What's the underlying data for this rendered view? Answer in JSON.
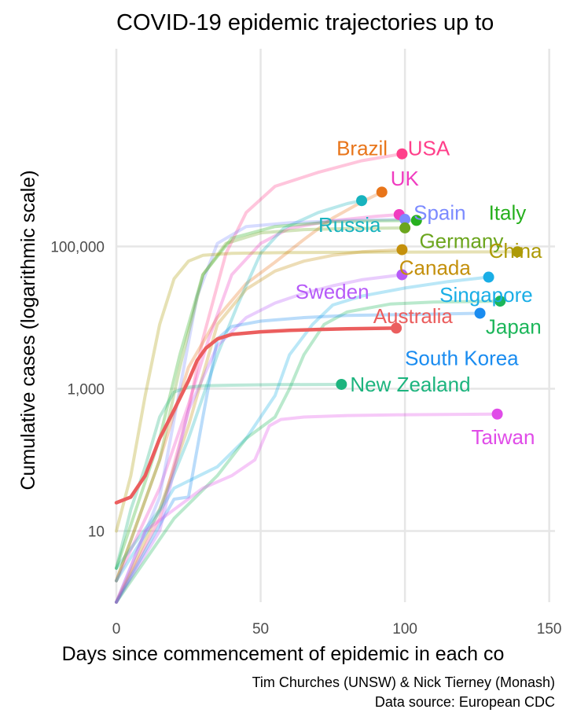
{
  "chart_data": {
    "type": "line",
    "title": "COVID-19 epidemic trajectories up to",
    "xlabel": "Days since commencement of epidemic in each co",
    "ylabel": "Cumulative cases (logarithmic scale)",
    "caption": [
      "Tim Churches (UNSW) & Nick Tierney (Monash)",
      "Data source: European CDC"
    ],
    "x_scale": "linear",
    "y_scale": "log10",
    "xlim": [
      0,
      152
    ],
    "ylim": [
      1,
      60000000
    ],
    "x_ticks": [
      0,
      50,
      100,
      150
    ],
    "x_tick_labels": [
      "0",
      "50",
      "100",
      "150"
    ],
    "y_ticks": [
      10,
      1000,
      100000
    ],
    "y_tick_labels": [
      "10",
      "1,000",
      "100,000"
    ],
    "grid": true,
    "legend": "none",
    "highlighted_series": "Australia",
    "series": [
      {
        "name": "USA",
        "color": "#FF3F8A",
        "end": [
          99,
          2000000
        ],
        "points": [
          [
            0,
            1
          ],
          [
            15,
            15
          ],
          [
            25,
            500
          ],
          [
            30,
            5000
          ],
          [
            38,
            80000
          ],
          [
            45,
            300000
          ],
          [
            55,
            700000
          ],
          [
            70,
            1100000
          ],
          [
            85,
            1600000
          ],
          [
            99,
            2000000
          ]
        ]
      },
      {
        "name": "Brazil",
        "color": "#E8751A",
        "end": [
          92,
          580000
        ],
        "points": [
          [
            0,
            2
          ],
          [
            15,
            100
          ],
          [
            25,
            2000
          ],
          [
            35,
            10000
          ],
          [
            45,
            30000
          ],
          [
            55,
            60000
          ],
          [
            65,
            125000
          ],
          [
            75,
            250000
          ],
          [
            85,
            420000
          ],
          [
            92,
            580000
          ]
        ]
      },
      {
        "name": "UK",
        "color": "#F03CC0",
        "end": [
          98,
          280000
        ],
        "points": [
          [
            0,
            2
          ],
          [
            15,
            40
          ],
          [
            25,
            600
          ],
          [
            32,
            5000
          ],
          [
            40,
            40000
          ],
          [
            50,
            110000
          ],
          [
            60,
            180000
          ],
          [
            75,
            230000
          ],
          [
            90,
            265000
          ],
          [
            98,
            280000
          ]
        ]
      },
      {
        "name": "Russia",
        "color": "#18B3BE",
        "end": [
          85,
          440000
        ],
        "points": [
          [
            0,
            3
          ],
          [
            15,
            20
          ],
          [
            25,
            200
          ],
          [
            35,
            3000
          ],
          [
            42,
            15000
          ],
          [
            50,
            80000
          ],
          [
            58,
            180000
          ],
          [
            70,
            300000
          ],
          [
            80,
            400000
          ],
          [
            85,
            440000
          ]
        ]
      },
      {
        "name": "Spain",
        "color": "#7C8BFF",
        "end": [
          100,
          240000
        ],
        "points": [
          [
            0,
            1
          ],
          [
            15,
            30
          ],
          [
            22,
            1000
          ],
          [
            28,
            20000
          ],
          [
            35,
            110000
          ],
          [
            45,
            190000
          ],
          [
            60,
            215000
          ],
          [
            80,
            232000
          ],
          [
            100,
            240000
          ]
        ]
      },
      {
        "name": "Italy",
        "color": "#27B01E",
        "end": [
          104,
          232000
        ],
        "points": [
          [
            0,
            3
          ],
          [
            15,
            200
          ],
          [
            22,
            3000
          ],
          [
            30,
            40000
          ],
          [
            40,
            130000
          ],
          [
            55,
            190000
          ],
          [
            75,
            222000
          ],
          [
            90,
            229000
          ],
          [
            104,
            232000
          ]
        ]
      },
      {
        "name": "Germany",
        "color": "#6BA51D",
        "end": [
          100,
          182000
        ],
        "points": [
          [
            0,
            2
          ],
          [
            15,
            100
          ],
          [
            22,
            2000
          ],
          [
            30,
            40000
          ],
          [
            38,
            110000
          ],
          [
            50,
            155000
          ],
          [
            65,
            172000
          ],
          [
            80,
            178000
          ],
          [
            100,
            182000
          ]
        ]
      },
      {
        "name": "China",
        "color": "#AD9A06",
        "end": [
          139,
          84000
        ],
        "points": [
          [
            0,
            10
          ],
          [
            5,
            60
          ],
          [
            10,
            800
          ],
          [
            15,
            8000
          ],
          [
            20,
            35000
          ],
          [
            25,
            62000
          ],
          [
            30,
            75000
          ],
          [
            40,
            80000
          ],
          [
            60,
            82000
          ],
          [
            90,
            83000
          ],
          [
            139,
            84000
          ]
        ]
      },
      {
        "name": "Canada",
        "color": "#C4900C",
        "end": [
          99,
          90000
        ],
        "points": [
          [
            0,
            1
          ],
          [
            15,
            20
          ],
          [
            25,
            300
          ],
          [
            35,
            8000
          ],
          [
            45,
            25000
          ],
          [
            55,
            45000
          ],
          [
            65,
            62000
          ],
          [
            75,
            75000
          ],
          [
            85,
            84000
          ],
          [
            99,
            90000
          ]
        ]
      },
      {
        "name": "Sweden",
        "color": "#B65AF8",
        "end": [
          99,
          40000
        ],
        "points": [
          [
            0,
            1
          ],
          [
            15,
            10
          ],
          [
            25,
            500
          ],
          [
            35,
            4000
          ],
          [
            45,
            10000
          ],
          [
            55,
            16000
          ],
          [
            65,
            22000
          ],
          [
            75,
            28000
          ],
          [
            85,
            34000
          ],
          [
            99,
            40000
          ]
        ]
      },
      {
        "name": "Singapore",
        "color": "#1AAEE6",
        "end": [
          129,
          37000
        ],
        "points": [
          [
            0,
            2
          ],
          [
            20,
            40
          ],
          [
            35,
            80
          ],
          [
            45,
            200
          ],
          [
            55,
            800
          ],
          [
            60,
            3000
          ],
          [
            68,
            8000
          ],
          [
            75,
            15000
          ],
          [
            85,
            20000
          ],
          [
            100,
            26000
          ],
          [
            115,
            32000
          ],
          [
            129,
            37000
          ]
        ]
      },
      {
        "name": "Japan",
        "color": "#1CB65A",
        "end": [
          133,
          17000
        ],
        "points": [
          [
            0,
            1
          ],
          [
            20,
            15
          ],
          [
            35,
            60
          ],
          [
            45,
            200
          ],
          [
            55,
            400
          ],
          [
            60,
            1000
          ],
          [
            65,
            3000
          ],
          [
            72,
            8000
          ],
          [
            80,
            12000
          ],
          [
            95,
            15500
          ],
          [
            110,
            16500
          ],
          [
            133,
            17000
          ]
        ]
      },
      {
        "name": "South Korea",
        "color": "#1A8CF0",
        "end": [
          126,
          11500
        ],
        "points": [
          [
            0,
            1
          ],
          [
            20,
            28
          ],
          [
            25,
            30
          ],
          [
            30,
            400
          ],
          [
            35,
            5000
          ],
          [
            40,
            7500
          ],
          [
            50,
            8900
          ],
          [
            65,
            10000
          ],
          [
            80,
            10700
          ],
          [
            100,
            11000
          ],
          [
            126,
            11500
          ]
        ]
      },
      {
        "name": "Australia",
        "color": "#EB5E5E",
        "end": [
          97,
          7100
        ],
        "points": [
          [
            0,
            25
          ],
          [
            5,
            30
          ],
          [
            10,
            60
          ],
          [
            15,
            200
          ],
          [
            20,
            500
          ],
          [
            25,
            1300
          ],
          [
            28,
            2500
          ],
          [
            31,
            3700
          ],
          [
            35,
            5000
          ],
          [
            40,
            5800
          ],
          [
            50,
            6300
          ],
          [
            60,
            6600
          ],
          [
            70,
            6800
          ],
          [
            80,
            6950
          ],
          [
            97,
            7100
          ]
        ]
      },
      {
        "name": "New Zealand",
        "color": "#1DB47E",
        "end": [
          78,
          1150
        ],
        "points": [
          [
            0,
            3
          ],
          [
            5,
            20
          ],
          [
            10,
            80
          ],
          [
            15,
            400
          ],
          [
            20,
            900
          ],
          [
            25,
            1050
          ],
          [
            30,
            1100
          ],
          [
            40,
            1120
          ],
          [
            55,
            1140
          ],
          [
            78,
            1150
          ]
        ]
      },
      {
        "name": "Taiwan",
        "color": "#E04CE8",
        "end": [
          132,
          440
        ],
        "points": [
          [
            0,
            1
          ],
          [
            10,
            10
          ],
          [
            20,
            20
          ],
          [
            30,
            40
          ],
          [
            40,
            60
          ],
          [
            48,
            100
          ],
          [
            53,
            300
          ],
          [
            57,
            370
          ],
          [
            65,
            400
          ],
          [
            80,
            420
          ],
          [
            100,
            430
          ],
          [
            132,
            440
          ]
        ]
      }
    ],
    "labels": [
      {
        "name": "USA",
        "x": 101,
        "y": 2400000,
        "anchor": "start"
      },
      {
        "name": "Brazil",
        "x": 94,
        "y": 2400000,
        "anchor": "end"
      },
      {
        "name": "UK",
        "x": 95,
        "y": 900000,
        "anchor": "start"
      },
      {
        "name": "Russia",
        "x": 70,
        "y": 200000,
        "anchor": "start"
      },
      {
        "name": "Spain",
        "x": 103,
        "y": 300000,
        "anchor": "start"
      },
      {
        "name": "Italy",
        "x": 129,
        "y": 300000,
        "anchor": "start"
      },
      {
        "name": "Germany",
        "x": 105,
        "y": 120000,
        "anchor": "start"
      },
      {
        "name": "China",
        "x": 129,
        "y": 87000,
        "anchor": "start"
      },
      {
        "name": "Canada",
        "x": 98,
        "y": 50000,
        "anchor": "start"
      },
      {
        "name": "Sweden",
        "x": 62,
        "y": 23000,
        "anchor": "start"
      },
      {
        "name": "Singapore",
        "x": 112,
        "y": 21000,
        "anchor": "start"
      },
      {
        "name": "Japan",
        "x": 128,
        "y": 7500,
        "anchor": "start"
      },
      {
        "name": "South Korea",
        "x": 100,
        "y": 2700,
        "anchor": "start"
      },
      {
        "name": "Australia",
        "x": 89,
        "y": 10500,
        "anchor": "start"
      },
      {
        "name": "New Zealand",
        "x": 81,
        "y": 1150,
        "anchor": "start"
      },
      {
        "name": "Taiwan",
        "x": 123,
        "y": 210,
        "anchor": "start"
      }
    ]
  }
}
